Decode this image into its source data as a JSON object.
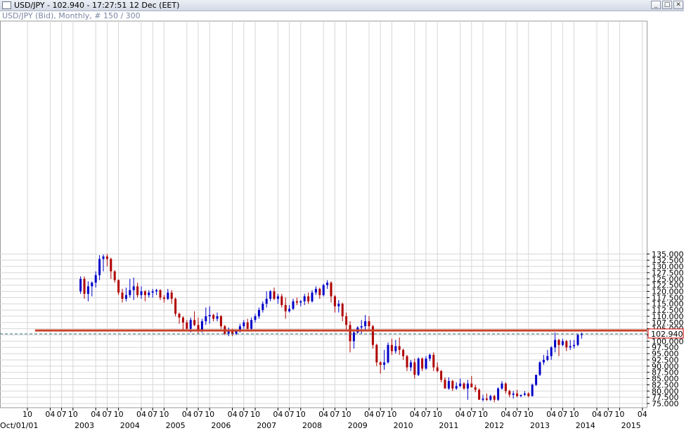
{
  "window": {
    "title": "USD/JPY - 102.940 - 17:27:51  12 Dec (EET)",
    "subtitle": "USD/JPY (Bid), Monthly, # 150 / 300",
    "buttons": [
      "_",
      "□",
      "✕"
    ]
  },
  "colors": {
    "bull": "#0000c8",
    "bear": "#b00000",
    "grid": "#d7d7d7",
    "resistance": "#c8442a",
    "current_line": "#2e6f7a",
    "price_box_border": "#d00000"
  },
  "icons": {
    "title": "chart-window-icon"
  },
  "chart_data": {
    "type": "candlestick",
    "instrument": "USD/JPY",
    "timeframe": "Monthly",
    "current_price": 102.94,
    "current_price_label": "102.940",
    "horizontal_level": 104.3,
    "ylim": [
      74.8,
      136.2
    ],
    "yticks": [
      "135.000",
      "132.500",
      "130.000",
      "127.500",
      "125.000",
      "122.500",
      "120.000",
      "117.500",
      "115.000",
      "112.500",
      "110.000",
      "107.500",
      "105.000",
      "102.500",
      "100.000",
      "97.500",
      "95.000",
      "92.500",
      "90.000",
      "87.500",
      "85.000",
      "82.500",
      "80.000",
      "77.500",
      "75.000"
    ],
    "x_start_label": "Oct/01/01",
    "year_labels": [
      {
        "label": "2003",
        "month": 0
      },
      {
        "label": "2004",
        "month": 12
      },
      {
        "label": "2005",
        "month": 24
      },
      {
        "label": "2006",
        "month": 36
      },
      {
        "label": "2007",
        "month": 48
      },
      {
        "label": "2008",
        "month": 60
      },
      {
        "label": "2009",
        "month": 72
      },
      {
        "label": "2010",
        "month": 84
      },
      {
        "label": "2011",
        "month": 96
      },
      {
        "label": "2012",
        "month": 108
      },
      {
        "label": "2013",
        "month": 120
      },
      {
        "label": "2014",
        "month": 132
      },
      {
        "label": "2015",
        "month": 144
      }
    ],
    "month_ticks": [
      "04",
      "07",
      "10"
    ],
    "first_month_index": -15,
    "last_month_index": 155,
    "candles": [
      {
        "o": 120.0,
        "h": 126.0,
        "l": 119.0,
        "c": 125.0
      },
      {
        "o": 125.0,
        "h": 126.0,
        "l": 117.0,
        "c": 119.0
      },
      {
        "o": 119.0,
        "h": 124.0,
        "l": 116.0,
        "c": 122.0
      },
      {
        "o": 122.0,
        "h": 124.0,
        "l": 118.0,
        "c": 123.5
      },
      {
        "o": 123.5,
        "h": 128.0,
        "l": 121.5,
        "c": 126.5
      },
      {
        "o": 126.5,
        "h": 134.5,
        "l": 124.5,
        "c": 133.0
      },
      {
        "o": 133.0,
        "h": 134.8,
        "l": 128.0,
        "c": 134.0
      },
      {
        "o": 134.0,
        "h": 135.0,
        "l": 130.0,
        "c": 133.0
      },
      {
        "o": 133.0,
        "h": 133.5,
        "l": 125.0,
        "c": 128.0
      },
      {
        "o": 128.0,
        "h": 128.5,
        "l": 123.5,
        "c": 124.5
      },
      {
        "o": 124.5,
        "h": 124.8,
        "l": 118.5,
        "c": 119.5
      },
      {
        "o": 119.5,
        "h": 121.0,
        "l": 115.5,
        "c": 117.0
      },
      {
        "o": 117.0,
        "h": 121.5,
        "l": 116.0,
        "c": 118.5
      },
      {
        "o": 118.5,
        "h": 125.0,
        "l": 117.5,
        "c": 120.5
      },
      {
        "o": 120.5,
        "h": 125.5,
        "l": 116.5,
        "c": 122.0
      },
      {
        "o": 122.0,
        "h": 123.5,
        "l": 117.5,
        "c": 118.5
      },
      {
        "o": 118.5,
        "h": 122.0,
        "l": 117.0,
        "c": 120.0
      },
      {
        "o": 120.0,
        "h": 120.5,
        "l": 116.0,
        "c": 118.5
      },
      {
        "o": 118.5,
        "h": 120.5,
        "l": 117.5,
        "c": 119.5
      },
      {
        "o": 119.5,
        "h": 121.0,
        "l": 117.5,
        "c": 120.0
      },
      {
        "o": 120.0,
        "h": 121.0,
        "l": 118.5,
        "c": 120.5
      },
      {
        "o": 120.5,
        "h": 120.8,
        "l": 116.5,
        "c": 117.5
      },
      {
        "o": 117.5,
        "h": 118.5,
        "l": 115.5,
        "c": 117.0
      },
      {
        "o": 117.0,
        "h": 121.0,
        "l": 116.5,
        "c": 119.5
      },
      {
        "o": 119.5,
        "h": 120.5,
        "l": 115.0,
        "c": 117.0
      },
      {
        "o": 117.0,
        "h": 117.5,
        "l": 110.0,
        "c": 111.0
      },
      {
        "o": 111.0,
        "h": 111.5,
        "l": 107.0,
        "c": 109.5
      },
      {
        "o": 109.5,
        "h": 110.0,
        "l": 104.0,
        "c": 107.5
      },
      {
        "o": 107.5,
        "h": 108.5,
        "l": 104.5,
        "c": 105.0
      },
      {
        "o": 105.0,
        "h": 109.5,
        "l": 103.5,
        "c": 108.5
      },
      {
        "o": 108.5,
        "h": 112.0,
        "l": 106.0,
        "c": 106.5
      },
      {
        "o": 106.5,
        "h": 109.5,
        "l": 103.0,
        "c": 104.0
      },
      {
        "o": 104.0,
        "h": 109.0,
        "l": 103.5,
        "c": 108.0
      },
      {
        "o": 108.0,
        "h": 113.5,
        "l": 106.5,
        "c": 110.0
      },
      {
        "o": 110.0,
        "h": 114.0,
        "l": 107.0,
        "c": 110.5
      },
      {
        "o": 110.5,
        "h": 111.0,
        "l": 108.0,
        "c": 109.0
      },
      {
        "o": 109.0,
        "h": 111.5,
        "l": 108.0,
        "c": 110.0
      },
      {
        "o": 110.0,
        "h": 110.5,
        "l": 105.0,
        "c": 106.0
      },
      {
        "o": 106.0,
        "h": 106.5,
        "l": 102.5,
        "c": 103.0
      },
      {
        "o": 103.0,
        "h": 105.5,
        "l": 102.0,
        "c": 104.0
      },
      {
        "o": 104.0,
        "h": 105.0,
        "l": 102.0,
        "c": 103.0
      },
      {
        "o": 103.0,
        "h": 104.5,
        "l": 102.5,
        "c": 104.0
      },
      {
        "o": 104.0,
        "h": 107.0,
        "l": 103.5,
        "c": 106.0
      },
      {
        "o": 106.0,
        "h": 108.5,
        "l": 105.0,
        "c": 107.5
      },
      {
        "o": 107.5,
        "h": 109.0,
        "l": 104.0,
        "c": 105.0
      },
      {
        "o": 105.0,
        "h": 109.5,
        "l": 104.5,
        "c": 108.5
      },
      {
        "o": 108.5,
        "h": 111.0,
        "l": 107.5,
        "c": 110.0
      },
      {
        "o": 110.0,
        "h": 113.5,
        "l": 109.0,
        "c": 112.5
      },
      {
        "o": 112.5,
        "h": 116.0,
        "l": 111.5,
        "c": 115.0
      },
      {
        "o": 115.0,
        "h": 120.0,
        "l": 113.5,
        "c": 117.0
      },
      {
        "o": 117.0,
        "h": 120.5,
        "l": 116.0,
        "c": 120.0
      },
      {
        "o": 120.0,
        "h": 121.5,
        "l": 116.5,
        "c": 117.0
      },
      {
        "o": 117.0,
        "h": 119.0,
        "l": 115.0,
        "c": 118.0
      },
      {
        "o": 118.0,
        "h": 119.0,
        "l": 113.5,
        "c": 114.5
      },
      {
        "o": 114.5,
        "h": 117.5,
        "l": 109.0,
        "c": 112.0
      },
      {
        "o": 112.0,
        "h": 114.5,
        "l": 111.5,
        "c": 113.0
      },
      {
        "o": 113.0,
        "h": 117.0,
        "l": 112.5,
        "c": 116.0
      },
      {
        "o": 116.0,
        "h": 117.5,
        "l": 114.5,
        "c": 115.5
      },
      {
        "o": 115.5,
        "h": 116.5,
        "l": 114.0,
        "c": 116.0
      },
      {
        "o": 116.0,
        "h": 119.0,
        "l": 114.5,
        "c": 118.0
      },
      {
        "o": 118.0,
        "h": 119.5,
        "l": 115.0,
        "c": 116.0
      },
      {
        "o": 116.0,
        "h": 120.5,
        "l": 115.5,
        "c": 119.5
      },
      {
        "o": 119.5,
        "h": 122.0,
        "l": 118.5,
        "c": 121.0
      },
      {
        "o": 121.0,
        "h": 121.5,
        "l": 117.0,
        "c": 118.5
      },
      {
        "o": 118.5,
        "h": 123.0,
        "l": 118.0,
        "c": 122.5
      },
      {
        "o": 122.5,
        "h": 124.5,
        "l": 121.0,
        "c": 123.5
      },
      {
        "o": 123.5,
        "h": 124.0,
        "l": 115.5,
        "c": 118.0
      },
      {
        "o": 118.0,
        "h": 118.5,
        "l": 111.5,
        "c": 114.0
      },
      {
        "o": 114.0,
        "h": 116.5,
        "l": 111.5,
        "c": 115.0
      },
      {
        "o": 115.0,
        "h": 115.5,
        "l": 108.0,
        "c": 110.0
      },
      {
        "o": 110.0,
        "h": 111.5,
        "l": 104.0,
        "c": 106.5
      },
      {
        "o": 106.5,
        "h": 108.0,
        "l": 95.5,
        "c": 100.0
      },
      {
        "o": 100.0,
        "h": 104.0,
        "l": 97.0,
        "c": 103.5
      },
      {
        "o": 103.5,
        "h": 106.0,
        "l": 103.0,
        "c": 105.5
      },
      {
        "o": 105.5,
        "h": 108.5,
        "l": 103.0,
        "c": 106.0
      },
      {
        "o": 106.0,
        "h": 110.5,
        "l": 104.5,
        "c": 108.0
      },
      {
        "o": 108.0,
        "h": 110.0,
        "l": 104.0,
        "c": 106.0
      },
      {
        "o": 106.0,
        "h": 106.5,
        "l": 97.0,
        "c": 98.5
      },
      {
        "o": 98.5,
        "h": 99.0,
        "l": 90.0,
        "c": 91.5
      },
      {
        "o": 91.5,
        "h": 92.0,
        "l": 87.0,
        "c": 90.5
      },
      {
        "o": 90.5,
        "h": 96.5,
        "l": 88.5,
        "c": 91.5
      },
      {
        "o": 91.5,
        "h": 99.5,
        "l": 91.0,
        "c": 98.5
      },
      {
        "o": 98.5,
        "h": 101.0,
        "l": 94.5,
        "c": 96.0
      },
      {
        "o": 96.0,
        "h": 100.5,
        "l": 95.0,
        "c": 98.0
      },
      {
        "o": 98.0,
        "h": 101.5,
        "l": 94.5,
        "c": 96.5
      },
      {
        "o": 96.5,
        "h": 97.0,
        "l": 92.5,
        "c": 94.0
      },
      {
        "o": 94.0,
        "h": 94.5,
        "l": 88.0,
        "c": 89.5
      },
      {
        "o": 89.5,
        "h": 92.5,
        "l": 88.0,
        "c": 91.5
      },
      {
        "o": 91.5,
        "h": 93.0,
        "l": 85.0,
        "c": 86.5
      },
      {
        "o": 86.5,
        "h": 93.5,
        "l": 86.0,
        "c": 93.0
      },
      {
        "o": 93.0,
        "h": 93.5,
        "l": 88.0,
        "c": 89.0
      },
      {
        "o": 89.0,
        "h": 94.0,
        "l": 88.5,
        "c": 93.0
      },
      {
        "o": 93.0,
        "h": 95.0,
        "l": 92.0,
        "c": 94.5
      },
      {
        "o": 94.5,
        "h": 95.5,
        "l": 88.0,
        "c": 89.5
      },
      {
        "o": 89.5,
        "h": 91.5,
        "l": 87.5,
        "c": 88.0
      },
      {
        "o": 88.0,
        "h": 88.5,
        "l": 83.5,
        "c": 84.5
      },
      {
        "o": 84.5,
        "h": 85.5,
        "l": 81.5,
        "c": 81.0
      },
      {
        "o": 81.0,
        "h": 85.5,
        "l": 80.5,
        "c": 84.0
      },
      {
        "o": 84.0,
        "h": 84.5,
        "l": 80.0,
        "c": 81.0
      },
      {
        "o": 81.0,
        "h": 83.5,
        "l": 80.5,
        "c": 82.0
      },
      {
        "o": 82.0,
        "h": 85.0,
        "l": 81.5,
        "c": 83.0
      },
      {
        "o": 83.0,
        "h": 83.5,
        "l": 80.5,
        "c": 81.0
      },
      {
        "o": 81.0,
        "h": 84.5,
        "l": 76.5,
        "c": 83.0
      },
      {
        "o": 83.0,
        "h": 86.0,
        "l": 81.5,
        "c": 81.5
      },
      {
        "o": 81.5,
        "h": 82.5,
        "l": 79.5,
        "c": 80.5
      },
      {
        "o": 80.5,
        "h": 81.0,
        "l": 77.0,
        "c": 76.5
      },
      {
        "o": 76.5,
        "h": 78.5,
        "l": 75.8,
        "c": 77.0
      },
      {
        "o": 77.0,
        "h": 79.0,
        "l": 76.0,
        "c": 76.5
      },
      {
        "o": 76.5,
        "h": 78.5,
        "l": 76.0,
        "c": 78.0
      },
      {
        "o": 78.0,
        "h": 78.5,
        "l": 75.5,
        "c": 76.5
      },
      {
        "o": 76.5,
        "h": 81.5,
        "l": 76.0,
        "c": 81.0
      },
      {
        "o": 81.0,
        "h": 84.0,
        "l": 80.5,
        "c": 83.0
      },
      {
        "o": 83.0,
        "h": 83.5,
        "l": 79.0,
        "c": 80.0
      },
      {
        "o": 80.0,
        "h": 80.5,
        "l": 77.5,
        "c": 78.5
      },
      {
        "o": 78.5,
        "h": 80.0,
        "l": 77.0,
        "c": 79.0
      },
      {
        "o": 79.0,
        "h": 80.5,
        "l": 77.5,
        "c": 78.0
      },
      {
        "o": 78.0,
        "h": 78.5,
        "l": 77.5,
        "c": 78.5
      },
      {
        "o": 78.5,
        "h": 80.0,
        "l": 78.0,
        "c": 79.0
      },
      {
        "o": 79.0,
        "h": 79.5,
        "l": 77.5,
        "c": 78.0
      },
      {
        "o": 78.0,
        "h": 83.0,
        "l": 77.8,
        "c": 82.5
      },
      {
        "o": 82.5,
        "h": 86.5,
        "l": 82.0,
        "c": 86.5
      },
      {
        "o": 86.5,
        "h": 92.0,
        "l": 86.0,
        "c": 91.5
      },
      {
        "o": 91.5,
        "h": 94.5,
        "l": 90.5,
        "c": 92.5
      },
      {
        "o": 92.5,
        "h": 96.5,
        "l": 92.0,
        "c": 94.0
      },
      {
        "o": 94.0,
        "h": 98.0,
        "l": 92.5,
        "c": 97.5
      },
      {
        "o": 97.5,
        "h": 103.5,
        "l": 95.5,
        "c": 100.5
      },
      {
        "o": 100.5,
        "h": 101.0,
        "l": 94.0,
        "c": 98.5
      },
      {
        "o": 98.5,
        "h": 101.0,
        "l": 98.0,
        "c": 100.0
      },
      {
        "o": 100.0,
        "h": 100.5,
        "l": 96.0,
        "c": 97.5
      },
      {
        "o": 97.5,
        "h": 100.5,
        "l": 96.5,
        "c": 98.0
      },
      {
        "o": 98.0,
        "h": 100.5,
        "l": 97.0,
        "c": 98.5
      },
      {
        "o": 98.5,
        "h": 103.0,
        "l": 98.0,
        "c": 102.5
      },
      {
        "o": 102.5,
        "h": 103.5,
        "l": 101.0,
        "c": 102.94
      }
    ]
  }
}
